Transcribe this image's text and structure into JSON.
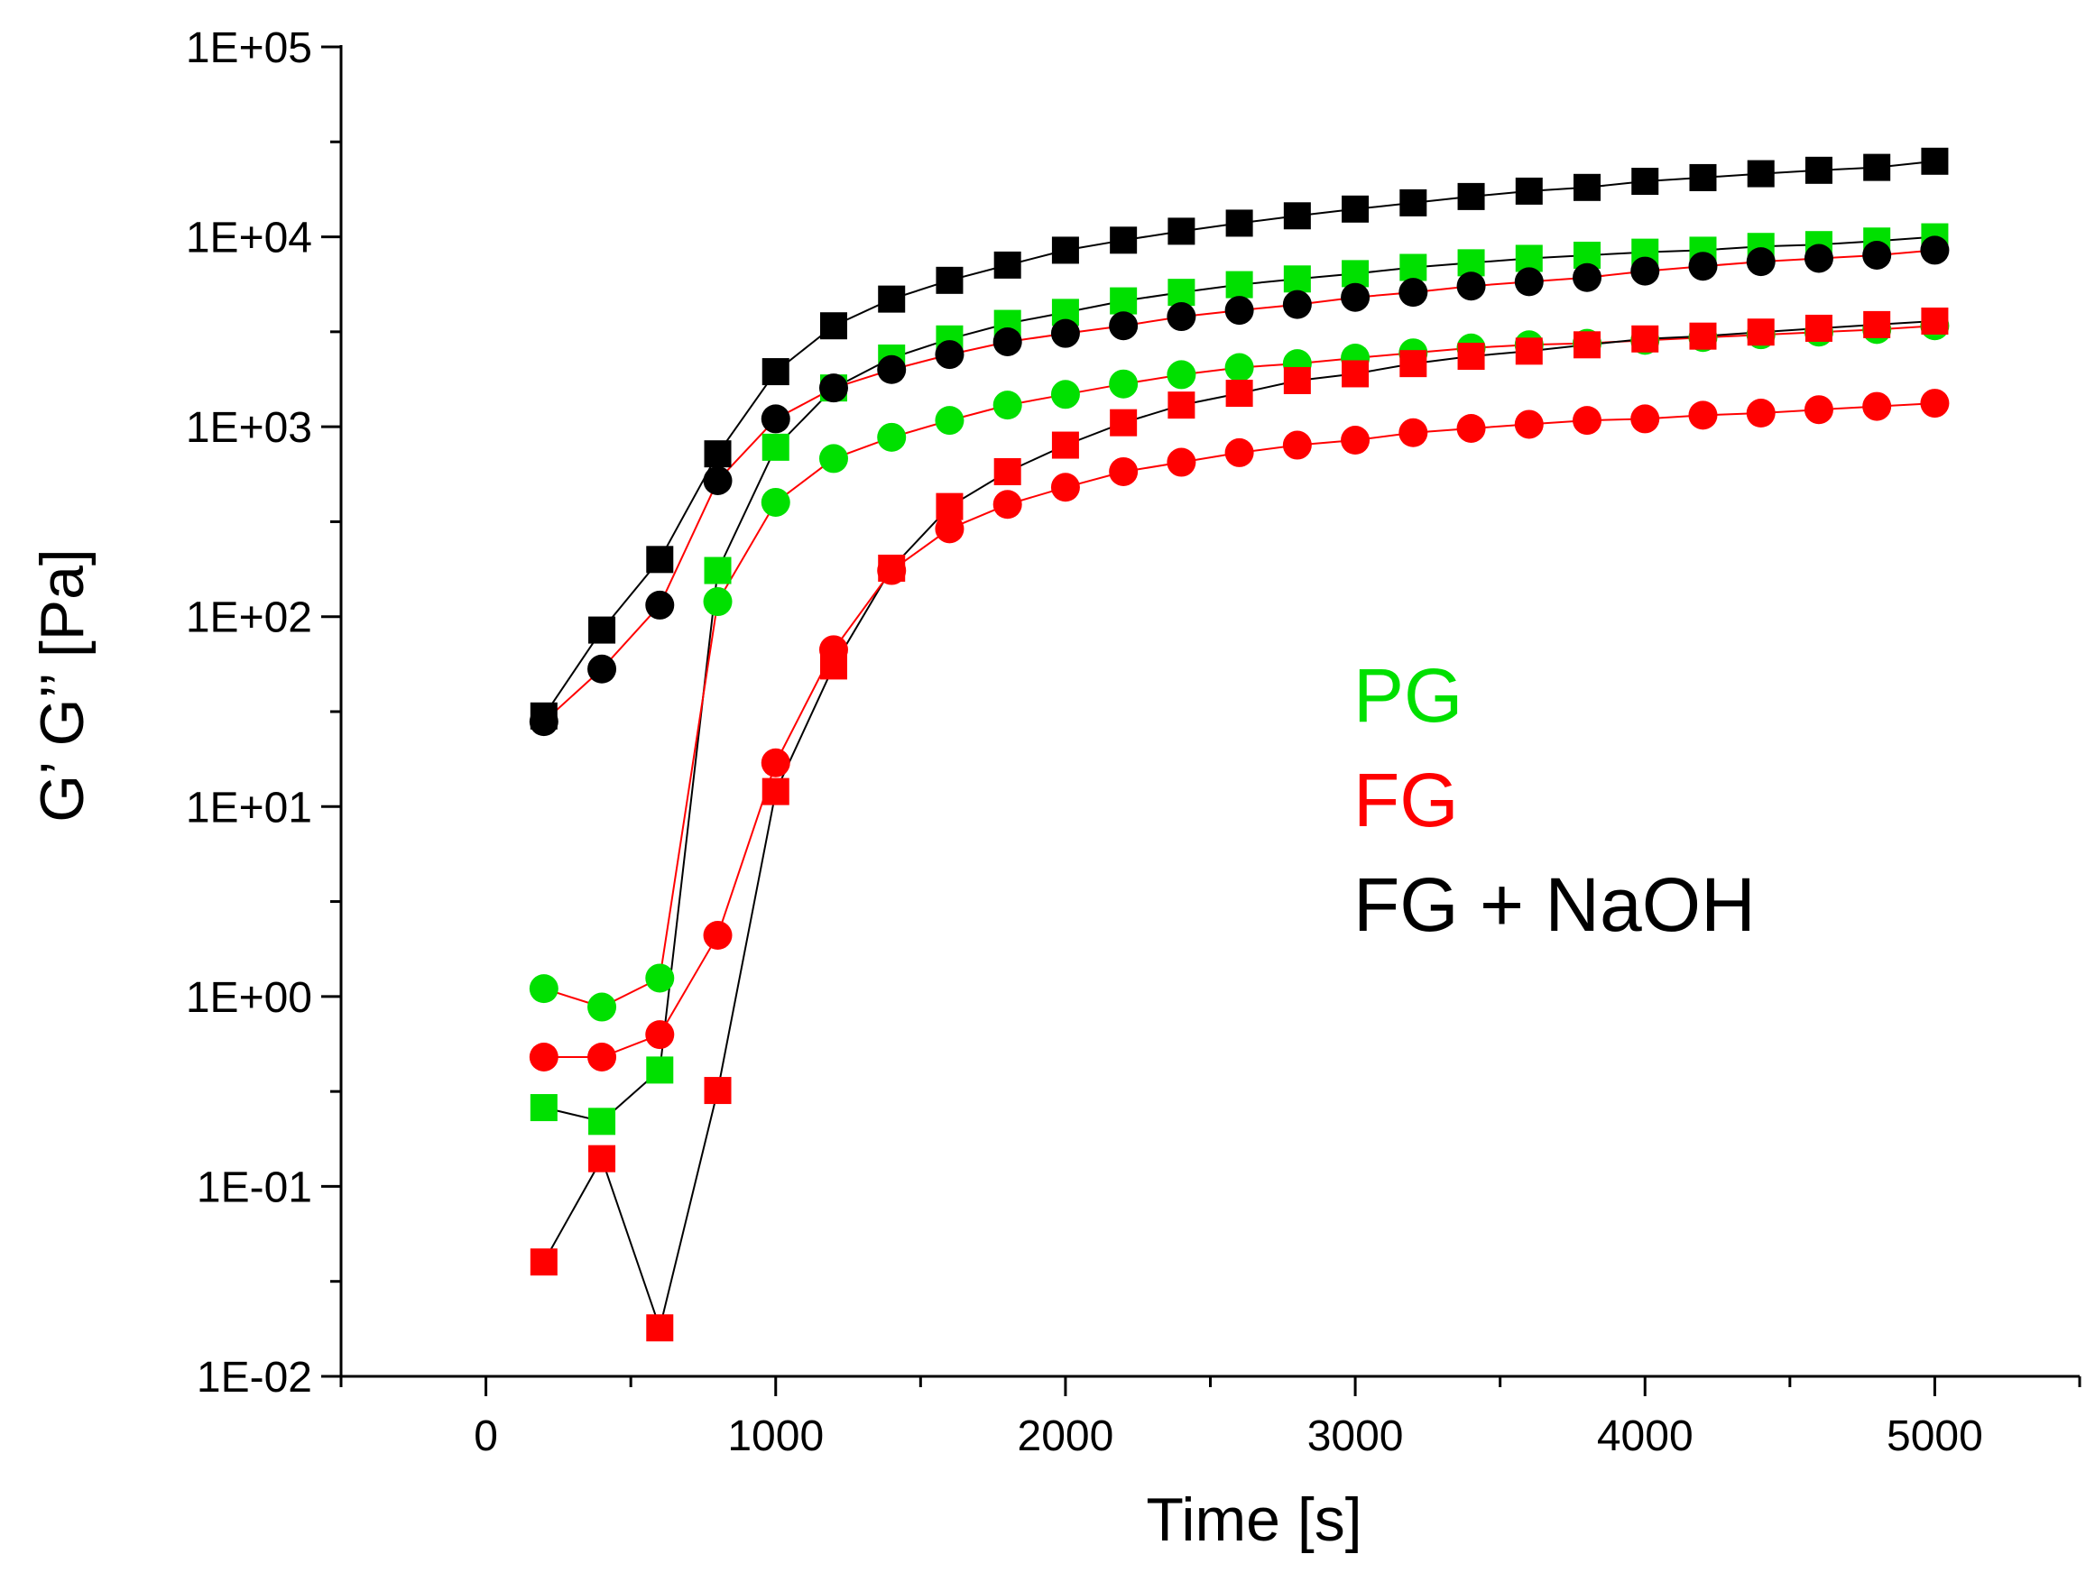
{
  "chart_data": {
    "type": "scatter",
    "title": "",
    "xlabel": "Time [s]",
    "ylabel": "G’ G’’ [Pa]",
    "xlim": [
      -500,
      5500
    ],
    "ylim": [
      0.01,
      100000
    ],
    "yscale": "log",
    "x_ticks": [
      0,
      1000,
      2000,
      3000,
      4000,
      5000
    ],
    "x_tick_labels": [
      "0",
      "1000",
      "2000",
      "3000",
      "4000",
      "5000"
    ],
    "y_ticks": [
      0.01,
      0.1,
      1,
      10,
      100,
      1000,
      10000,
      100000
    ],
    "y_tick_labels": [
      "1E-02",
      "1E-01",
      "1E+00",
      "1E+01",
      "1E+02",
      "1E+03",
      "1E+04",
      "1E+05"
    ],
    "grid": false,
    "legend": {
      "placement": "center-right",
      "entries": [
        {
          "label": "PG",
          "color": "#00e000"
        },
        {
          "label": "FG",
          "color": "#ff0000"
        },
        {
          "label": "FG + NaOH",
          "color": "#000000"
        }
      ]
    },
    "x": [
      200,
      400,
      600,
      800,
      1000,
      1200,
      1400,
      1600,
      1800,
      2000,
      2200,
      2400,
      2600,
      2800,
      3000,
      3200,
      3400,
      3600,
      3800,
      4000,
      4200,
      4400,
      4600,
      4800,
      5000
    ],
    "series": [
      {
        "name": "FG + NaOH G'",
        "marker": "square",
        "color": "#000000",
        "line_color": "#000000",
        "values": [
          30,
          85,
          200,
          720,
          1950,
          3400,
          4700,
          5900,
          7100,
          8500,
          9600,
          10700,
          11800,
          12900,
          14000,
          15100,
          16300,
          17400,
          18200,
          19600,
          20500,
          21500,
          22400,
          23200,
          25000
        ]
      },
      {
        "name": "PG G'",
        "marker": "square",
        "color": "#00e000",
        "line_color": "#000000",
        "values": [
          0.26,
          0.22,
          0.41,
          175,
          780,
          1600,
          2300,
          2900,
          3500,
          4000,
          4600,
          5100,
          5600,
          6000,
          6400,
          6900,
          7300,
          7700,
          8000,
          8300,
          8500,
          8900,
          9100,
          9500,
          10000
        ]
      },
      {
        "name": "FG + NaOH G''",
        "marker": "circle",
        "color": "#000000",
        "line_color": "#ff0000",
        "values": [
          28,
          53,
          115,
          520,
          1100,
          1600,
          2000,
          2400,
          2800,
          3100,
          3400,
          3800,
          4100,
          4400,
          4800,
          5100,
          5500,
          5800,
          6100,
          6600,
          7000,
          7400,
          7700,
          8000,
          8500
        ]
      },
      {
        "name": "PG G''",
        "marker": "circle",
        "color": "#00e000",
        "line_color": "#ff0000",
        "values": [
          1.1,
          0.88,
          1.25,
          120,
          400,
          680,
          880,
          1080,
          1300,
          1480,
          1680,
          1880,
          2050,
          2150,
          2300,
          2450,
          2600,
          2700,
          2750,
          2850,
          2950,
          3050,
          3150,
          3250,
          3400
        ]
      },
      {
        "name": "FG G'",
        "marker": "square",
        "color": "#ff0000",
        "line_color": "#000000",
        "values": [
          0.04,
          0.14,
          0.018,
          0.32,
          12,
          55,
          180,
          380,
          580,
          800,
          1050,
          1300,
          1500,
          1750,
          1900,
          2150,
          2350,
          2500,
          2700,
          2900,
          3000,
          3150,
          3300,
          3450,
          3600
        ]
      },
      {
        "name": "FG G''",
        "marker": "circle",
        "color": "#ff0000",
        "line_color": "#ff0000",
        "values": [
          0.48,
          0.48,
          0.63,
          2.1,
          17,
          67,
          175,
          290,
          390,
          480,
          580,
          650,
          730,
          800,
          850,
          930,
          980,
          1030,
          1080,
          1100,
          1150,
          1180,
          1230,
          1280,
          1330
        ]
      }
    ]
  }
}
